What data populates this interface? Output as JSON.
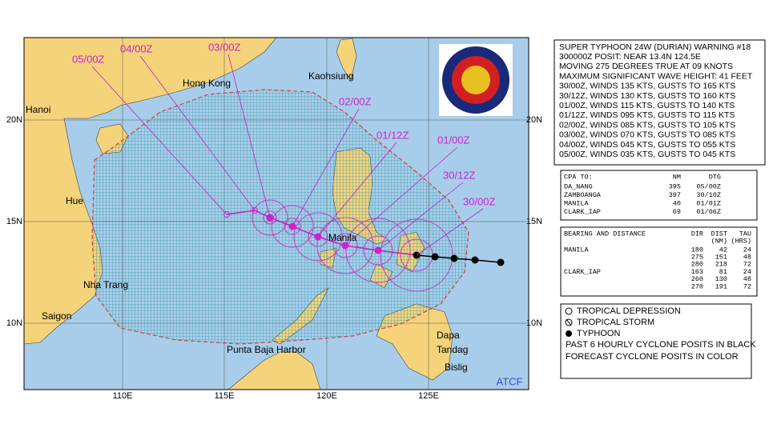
{
  "map": {
    "lon_labels": [
      "110E",
      "115E",
      "120E",
      "125E"
    ],
    "lat_labels": [
      "20N",
      "15N",
      "10N"
    ],
    "places": [
      "Hanoi",
      "Hong Kong",
      "Kaohsiung",
      "Hue",
      "Nha Trang",
      "Saigon",
      "Manila",
      "Punta Baja Harbor",
      "Dapa",
      "Tandag",
      "Bislig"
    ],
    "forecast_times": [
      "05/00Z",
      "04/00Z",
      "03/00Z",
      "02/00Z",
      "01/12Z",
      "01/00Z",
      "30/12Z",
      "30/00Z"
    ],
    "credit": "ATCF"
  },
  "warning": {
    "lines": [
      "SUPER TYPHOON 24W (DURIAN) WARNING #18",
      "300000Z POSIT: NEAR 13.4N 124.5E",
      "MOVING 275 DEGREES TRUE AT 09 KNOTS",
      "MAXIMUM SIGNIFICANT WAVE HEIGHT: 41 FEET",
      "30/00Z, WINDS 135 KTS, GUSTS TO 165 KTS",
      "30/12Z, WINDS 130 KTS, GUSTS TO 160 KTS",
      "01/00Z, WINDS 115 KTS, GUSTS TO 140 KTS",
      "01/12Z, WINDS 095 KTS, GUSTS TO 115 KTS",
      "02/00Z, WINDS 085 KTS, GUSTS TO 105 KTS",
      "03/00Z, WINDS 070 KTS, GUSTS TO 085 KTS",
      "04/00Z, WINDS 045 KTS, GUSTS TO 055 KTS",
      "05/00Z, WINDS 035 KTS, GUSTS TO 045 KTS"
    ]
  },
  "cpa": {
    "header": [
      "CPA TO:",
      "NM",
      "DTG"
    ],
    "rows": [
      [
        "DA_NANG",
        "395",
        "05/00Z"
      ],
      [
        "ZAMBOANGA",
        "397",
        "30/10Z"
      ],
      [
        "MANILA",
        "40",
        "01/01Z"
      ],
      [
        "CLARK_IAP",
        "69",
        "01/06Z"
      ]
    ]
  },
  "bearing": {
    "header": [
      "BEARING AND DISTANCE",
      "DIR",
      "DIST",
      "TAU"
    ],
    "units": [
      "(NM)",
      "(HRS)"
    ],
    "groups": [
      {
        "place": "MANILA",
        "rows": [
          [
            "180",
            "42",
            "24"
          ],
          [
            "275",
            "151",
            "48"
          ],
          [
            "280",
            "218",
            "72"
          ]
        ]
      },
      {
        "place": "CLARK_IAP",
        "rows": [
          [
            "163",
            "81",
            "24"
          ],
          [
            "260",
            "130",
            "48"
          ],
          [
            "270",
            "191",
            "72"
          ]
        ]
      }
    ]
  },
  "legend": {
    "items": [
      "TROPICAL DEPRESSION",
      "TROPICAL STORM",
      "TYPHOON"
    ],
    "notes": [
      "PAST 6 HOURLY CYCLONE POSITS IN BLACK",
      "FORECAST CYCLONE POSITS IN COLOR"
    ]
  }
}
